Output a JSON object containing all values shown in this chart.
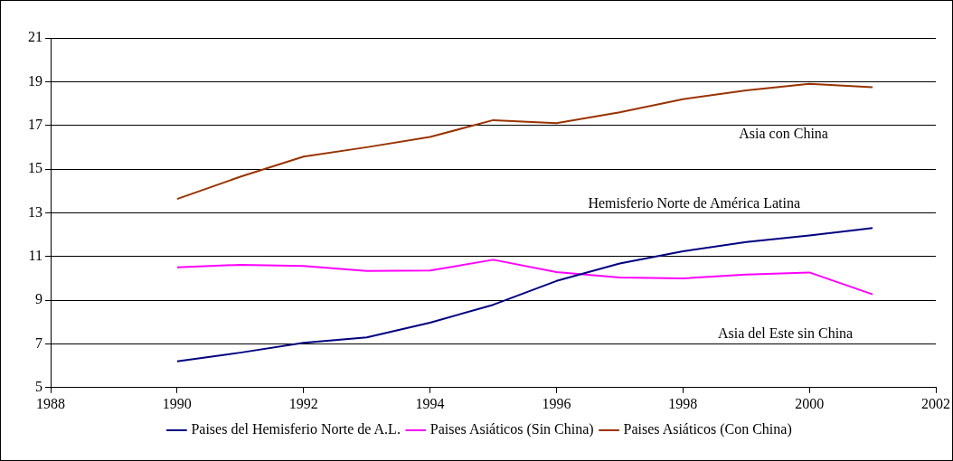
{
  "chart_data": {
    "type": "line",
    "x": [
      1990,
      1991,
      1992,
      1993,
      1994,
      1995,
      1996,
      1997,
      1998,
      1999,
      2000,
      2001
    ],
    "series": [
      {
        "name": "Paises del Hemisferio Norte de A.L.",
        "color": "#000080",
        "values": [
          6.2,
          6.6,
          7.05,
          7.3,
          7.97,
          8.79,
          9.88,
          10.68,
          11.24,
          11.66,
          11.96,
          12.3
        ]
      },
      {
        "name": "Paises Asiáticos (Sin China)",
        "color": "#ff00ff",
        "values": [
          10.5,
          10.62,
          10.57,
          10.34,
          10.36,
          10.85,
          10.29,
          10.04,
          10.0,
          10.17,
          10.27,
          9.27
        ]
      },
      {
        "name": "Paises Asiáticos (Con China)",
        "color": "#993300",
        "values": [
          13.63,
          14.65,
          15.57,
          16.0,
          16.47,
          17.24,
          17.1,
          17.6,
          18.2,
          18.6,
          18.9,
          18.75
        ]
      }
    ],
    "xlim": [
      1988,
      2002
    ],
    "xticks": [
      1988,
      1990,
      1992,
      1994,
      1996,
      1998,
      2000,
      2002
    ],
    "ylim": [
      5,
      21
    ],
    "yticks": [
      5,
      7,
      9,
      11,
      13,
      15,
      17,
      19,
      21
    ],
    "grid": "y",
    "legend": "bottom",
    "marker": "none",
    "line_style": "solid",
    "annotations": [
      "Asia con China",
      "Hemisferio Norte de América Latina",
      "Asia del Este sin China"
    ]
  }
}
